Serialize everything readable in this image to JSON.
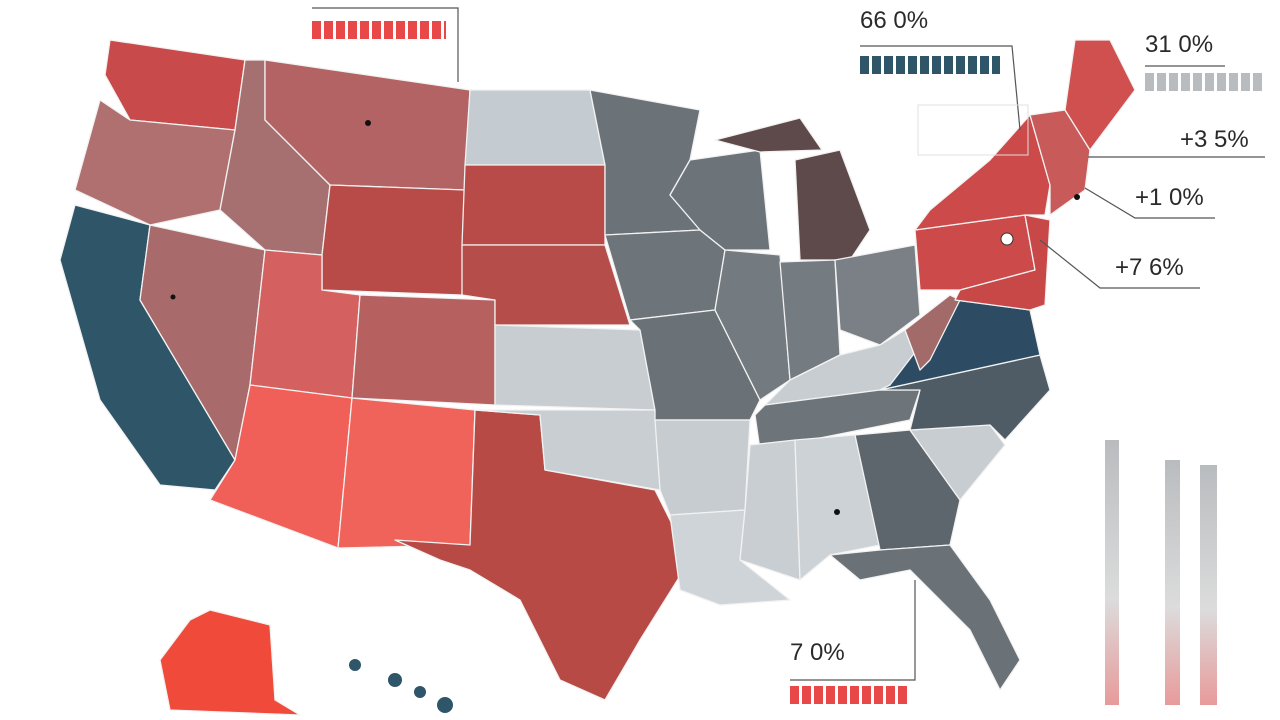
{
  "labels": [
    "66 0%",
    "31 0%",
    "+3 5%",
    "+1 0%",
    "+7 6%",
    "7 0%"
  ]
}
